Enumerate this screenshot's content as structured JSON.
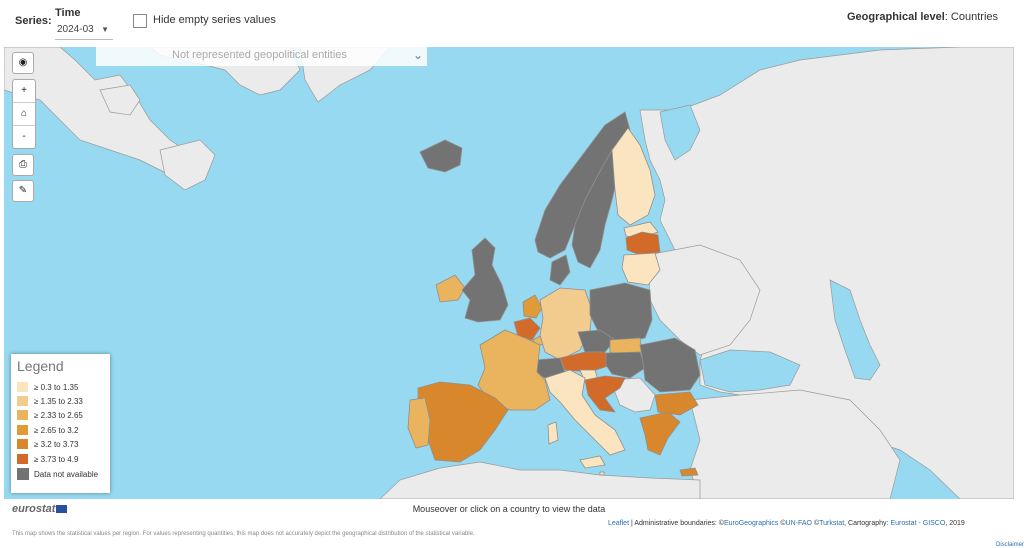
{
  "toolbar": {
    "series_label": "Series:",
    "time_label": "Time",
    "time_value": "2024-03",
    "hide_empty_label": "Hide empty series values",
    "geo_level_label": "Geographical level",
    "geo_level_sep": ":",
    "geo_level_value": "Countries"
  },
  "map": {
    "not_represented_label": "Not represented geopolitical entities",
    "sea_color": "#97d9f0",
    "non_member_color": "#ebebeb",
    "controls": {
      "globe_icon": "globe-icon",
      "zoom_in": "+",
      "home_icon": "home-icon",
      "zoom_out": "-",
      "print_icon": "print-icon",
      "style_icon": "brush-icon"
    },
    "countries": [
      {
        "name": "Iceland",
        "class": "na"
      },
      {
        "name": "Norway",
        "class": "na"
      },
      {
        "name": "Sweden",
        "class": "na"
      },
      {
        "name": "Finland",
        "class": "c1"
      },
      {
        "name": "Estonia",
        "class": "c1"
      },
      {
        "name": "Latvia",
        "class": "c6"
      },
      {
        "name": "Lithuania",
        "class": "c1"
      },
      {
        "name": "Denmark",
        "class": "na"
      },
      {
        "name": "Ireland",
        "class": "c3"
      },
      {
        "name": "United Kingdom",
        "class": "na"
      },
      {
        "name": "Netherlands",
        "class": "c4"
      },
      {
        "name": "Belgium",
        "class": "c6"
      },
      {
        "name": "Luxembourg",
        "class": "c3"
      },
      {
        "name": "Germany",
        "class": "c2"
      },
      {
        "name": "Poland",
        "class": "na"
      },
      {
        "name": "Czechia",
        "class": "na"
      },
      {
        "name": "Slovakia",
        "class": "c3"
      },
      {
        "name": "Austria",
        "class": "c6"
      },
      {
        "name": "Hungary",
        "class": "na"
      },
      {
        "name": "Slovenia",
        "class": "c1"
      },
      {
        "name": "Croatia",
        "class": "c6"
      },
      {
        "name": "Romania",
        "class": "na"
      },
      {
        "name": "Bulgaria",
        "class": "c5"
      },
      {
        "name": "Switzerland",
        "class": "na"
      },
      {
        "name": "France",
        "class": "c3"
      },
      {
        "name": "Italy",
        "class": "c1"
      },
      {
        "name": "Spain",
        "class": "c5"
      },
      {
        "name": "Portugal",
        "class": "c3"
      },
      {
        "name": "Greece",
        "class": "c5"
      },
      {
        "name": "Cyprus",
        "class": "c5"
      },
      {
        "name": "Malta",
        "class": "c1"
      }
    ]
  },
  "legend": {
    "title": "Legend",
    "items": [
      {
        "label": "≥ 0.3 to 1.35",
        "color": "#fbe5c0"
      },
      {
        "label": "≥ 1.35 to 2.33",
        "color": "#f2cc8f"
      },
      {
        "label": "≥ 2.33 to 2.65",
        "color": "#eab35d"
      },
      {
        "label": "≥ 2.65 to 3.2",
        "color": "#e09a36"
      },
      {
        "label": "≥ 3.2 to 3.73",
        "color": "#d9872c"
      },
      {
        "label": "≥ 3.73 to 4.9",
        "color": "#d26a2a"
      },
      {
        "label": "Data not available",
        "color": "#737373"
      }
    ]
  },
  "info": {
    "logo": "eurostat",
    "hint": "Mouseover or click on a country to view the data",
    "attribution_leaflet": "Leaflet",
    "attribution_text": " | Administrative boundaries: ©",
    "attribution_eurogeo": "EuroGeographics",
    "attribution_copy1": " ©",
    "attribution_unfao": "UN-FAO",
    "attribution_copy2": " ©",
    "attribution_turkstat": "Turkstat",
    "attribution_carto": ", Cartography: ",
    "attribution_eurostat": "Eurostat - GISCO",
    "attribution_year": ", 2019",
    "footnote": "This map shows the statistical values per region. For values representing quantities, this map does not accurately depict the geographical distribution of the statistical variable.",
    "disclaimer": "Disclaimer"
  }
}
